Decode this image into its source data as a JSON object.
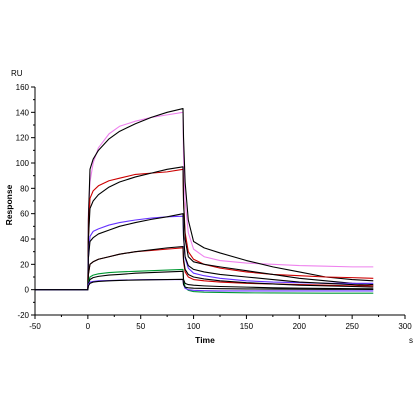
{
  "chart_data": {
    "type": "line",
    "xlabel": "Time",
    "ylabel": "Response",
    "y_unit": "RU",
    "x_unit": "s",
    "xlim": [
      -50,
      300
    ],
    "ylim": [
      -20,
      160
    ],
    "x_ticks": [
      -50,
      0,
      50,
      100,
      150,
      200,
      250,
      300
    ],
    "y_ticks": [
      -20,
      0,
      20,
      40,
      60,
      80,
      100,
      120,
      140,
      160
    ],
    "grid": false,
    "legend": "none",
    "series": [
      {
        "color": "#ee82ee",
        "x": [
          -50,
          0,
          0.5,
          2,
          5,
          10,
          20,
          30,
          45,
          60,
          75,
          90,
          90.5,
          92,
          95,
          100,
          110,
          125,
          150,
          175,
          200,
          225,
          250,
          270
        ],
        "y": [
          0,
          0,
          60,
          85,
          100,
          112,
          123,
          129,
          133,
          136,
          138,
          140,
          105,
          70,
          45,
          32,
          26,
          23,
          21,
          20,
          19,
          18.5,
          18,
          18
        ]
      },
      {
        "color": "#000000",
        "x": [
          -50,
          0,
          0.5,
          2,
          5,
          10,
          20,
          30,
          45,
          60,
          75,
          90,
          90.5,
          92,
          95,
          100,
          110,
          125,
          150,
          175,
          200,
          225,
          250,
          270
        ],
        "y": [
          0,
          0,
          55,
          95,
          103,
          110,
          119,
          125,
          131,
          136,
          140,
          143,
          120,
          85,
          55,
          38,
          33,
          29,
          23,
          18,
          14,
          10,
          8,
          7
        ]
      },
      {
        "color": "#cc0000",
        "x": [
          -50,
          0,
          0.5,
          2,
          5,
          10,
          20,
          30,
          45,
          60,
          75,
          90,
          90.5,
          92,
          95,
          100,
          110,
          125,
          150,
          175,
          200,
          225,
          250,
          270
        ],
        "y": [
          0,
          0,
          40,
          72,
          78,
          82,
          86,
          88,
          91,
          92,
          93,
          95,
          70,
          45,
          30,
          24,
          20,
          17,
          14,
          12,
          11,
          10,
          9.5,
          9
        ]
      },
      {
        "color": "#000000",
        "x": [
          -50,
          0,
          0.5,
          2,
          5,
          10,
          20,
          30,
          45,
          60,
          75,
          90,
          90.5,
          92,
          95,
          100,
          110,
          125,
          150,
          175,
          200,
          225,
          250,
          270
        ],
        "y": [
          0,
          0,
          40,
          64,
          70,
          75,
          81,
          85,
          89,
          92,
          95,
          97,
          70,
          40,
          26,
          22,
          20,
          18,
          15,
          12,
          9,
          7,
          5,
          4
        ]
      },
      {
        "color": "#6633ff",
        "x": [
          -50,
          0,
          0.5,
          2,
          5,
          10,
          20,
          30,
          45,
          60,
          75,
          90,
          90.5,
          92,
          95,
          100,
          110,
          125,
          150,
          175,
          200,
          225,
          250,
          270
        ],
        "y": [
          0,
          0,
          25,
          42,
          46,
          48,
          51,
          53,
          55,
          56.5,
          57.5,
          58,
          42,
          25,
          17,
          13,
          11,
          9,
          7,
          6,
          5.5,
          5,
          5,
          5
        ]
      },
      {
        "color": "#000000",
        "x": [
          -50,
          0,
          0.5,
          2,
          5,
          10,
          20,
          30,
          45,
          60,
          75,
          90,
          90.5,
          92,
          95,
          100,
          110,
          125,
          150,
          175,
          200,
          225,
          250,
          270
        ],
        "y": [
          0,
          0,
          25,
          38,
          41,
          44,
          47,
          50,
          53,
          55.5,
          57.5,
          60,
          42,
          26,
          19,
          16,
          14,
          12,
          10,
          8,
          6,
          5,
          4,
          3
        ]
      },
      {
        "color": "#cc0000",
        "x": [
          -50,
          0,
          0.5,
          2,
          5,
          10,
          20,
          30,
          45,
          60,
          75,
          90,
          90.5,
          92,
          95,
          100,
          110,
          125,
          150,
          175,
          200,
          225,
          250,
          270
        ],
        "y": [
          0,
          0,
          12,
          20,
          22,
          24,
          26,
          28,
          30,
          31,
          32,
          33,
          22,
          14,
          10,
          8,
          7,
          6,
          5,
          4.5,
          4,
          3.5,
          3,
          3
        ]
      },
      {
        "color": "#000000",
        "x": [
          -50,
          0,
          0.5,
          2,
          5,
          10,
          20,
          30,
          45,
          60,
          75,
          90,
          90.5,
          92,
          95,
          100,
          110,
          125,
          150,
          175,
          200,
          225,
          250,
          270
        ],
        "y": [
          0,
          0,
          12,
          20,
          22,
          24,
          26,
          28,
          30,
          31.5,
          33,
          34,
          24,
          16,
          12,
          10,
          8.5,
          7,
          5.5,
          4.5,
          3.5,
          3,
          2.5,
          2
        ]
      },
      {
        "color": "#009933",
        "x": [
          -50,
          0,
          0.5,
          2,
          5,
          10,
          20,
          30,
          45,
          60,
          75,
          90,
          90.5,
          92,
          95,
          100,
          110,
          125,
          150,
          175,
          200,
          225,
          250,
          270
        ],
        "y": [
          0,
          0,
          6,
          10,
          11.5,
          12.5,
          13.5,
          14,
          14.5,
          15,
          15.5,
          16,
          8,
          2,
          -0.5,
          -1.5,
          -2,
          -2.2,
          -2.5,
          -2.6,
          -2.7,
          -2.8,
          -2.8,
          -2.8
        ]
      },
      {
        "color": "#000000",
        "x": [
          -50,
          0,
          0.5,
          2,
          5,
          10,
          20,
          30,
          45,
          60,
          75,
          90,
          90.5,
          92,
          95,
          100,
          110,
          125,
          150,
          175,
          200,
          225,
          250,
          270
        ],
        "y": [
          0,
          0,
          5,
          8,
          9.5,
          10.5,
          11.5,
          12,
          13,
          13.5,
          14,
          14.5,
          8,
          5,
          4,
          3.5,
          3,
          2.5,
          2,
          1.5,
          1.2,
          1,
          0.8,
          0.7
        ]
      },
      {
        "color": "#6633ff",
        "x": [
          -50,
          0,
          0.5,
          2,
          5,
          10,
          20,
          30,
          45,
          60,
          75,
          90,
          90.5,
          92,
          95,
          100,
          110,
          125,
          150,
          175,
          200,
          225,
          250,
          270
        ],
        "y": [
          0,
          0,
          4,
          6,
          6.5,
          7,
          7.2,
          7.5,
          7.8,
          8,
          8,
          8,
          4,
          1,
          0,
          -0.5,
          -0.8,
          -1,
          -1,
          -1,
          -1,
          -1,
          -1,
          -1
        ]
      },
      {
        "color": "#000000",
        "x": [
          -50,
          0,
          0.5,
          2,
          5,
          10,
          20,
          30,
          45,
          60,
          75,
          90,
          90.5,
          92,
          95,
          100,
          110,
          125,
          150,
          175,
          200,
          225,
          250,
          270
        ],
        "y": [
          0,
          0,
          3,
          5,
          6,
          6.5,
          7,
          7.3,
          7.6,
          7.8,
          8,
          8.2,
          4,
          2,
          1.5,
          1.2,
          1,
          0.8,
          0.6,
          0.5,
          0.4,
          0.3,
          0.3,
          0.2
        ]
      }
    ]
  }
}
